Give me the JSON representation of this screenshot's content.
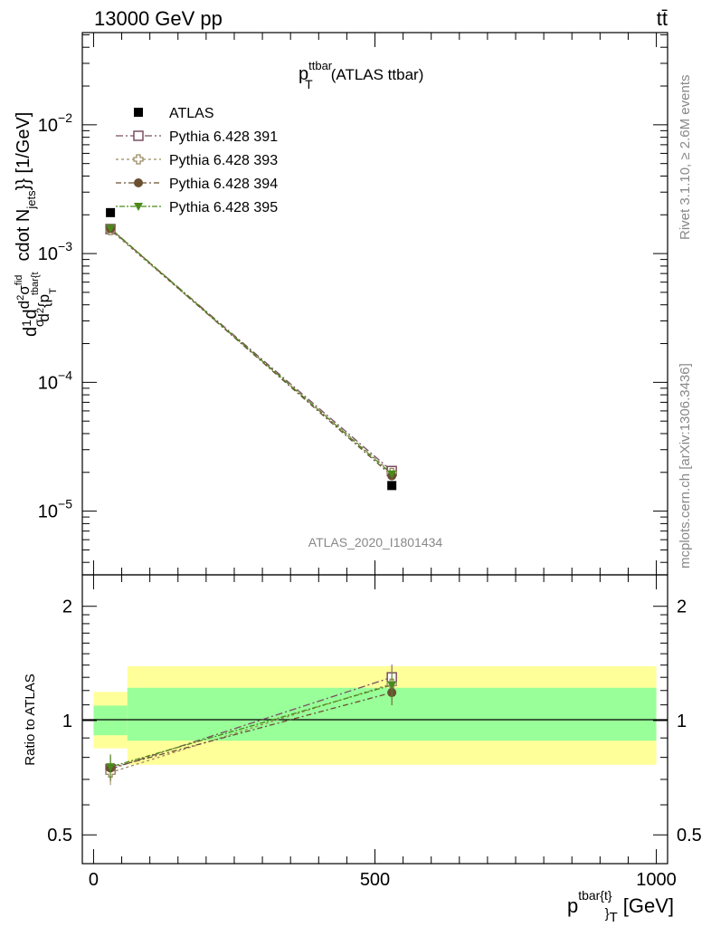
{
  "header": {
    "energy_label": "13000 GeV pp",
    "process_label": "tt̄"
  },
  "side_labels": {
    "rivet": "Rivet 3.1.10, ≥ 2.6M events",
    "mcplots": "mcplots.cern.ch [arXiv:1306.3436]"
  },
  "chart_data": [
    {
      "type": "line",
      "title_main": "p",
      "title_sup": "ttbar",
      "title_sub": "T",
      "title_rest": "(ATLAS ttbar)",
      "watermark": "ATLAS_2020_I1801434",
      "ylabel_parts": {
        "main": "d",
        "frac1": "1",
        "frac1_den": "σ",
        "d_a": "d",
        "num": "d",
        "num_sup": "2",
        "sigma": "σ",
        "sigma_sup": "fid",
        "den": "d",
        "den_sup": "2",
        "den_rest": "{p",
        "den_rest_sub": "T",
        "den_rest_sup": "tbar{t",
        "tail": "cdot N",
        "tail_sub": "jets",
        "tail_end": "}} [1/GeV]"
      },
      "xlim": [
        -20,
        1020
      ],
      "ylim": [
        3.2e-06,
        0.052
      ],
      "yscale": "log",
      "yticks": [
        {
          "value": 1e-05,
          "base": "10",
          "exp": "−5"
        },
        {
          "value": 0.0001,
          "base": "10",
          "exp": "−4"
        },
        {
          "value": 0.001,
          "base": "10",
          "exp": "−3"
        },
        {
          "value": 0.01,
          "base": "10",
          "exp": "−2"
        }
      ],
      "legend_position": "top-left",
      "data_series": {
        "name": "ATLAS",
        "color": "#000000",
        "x": [
          30,
          530
        ],
        "y": [
          0.00208,
          1.58e-05
        ]
      },
      "series": [
        {
          "name": "Pythia 6.428 391",
          "color": "#7a4e62",
          "marker": "open-square",
          "dash": "8,3,2,3",
          "x": [
            30,
            530
          ],
          "y": [
            0.00155,
            2.05e-05
          ]
        },
        {
          "name": "Pythia 6.428 393",
          "color": "#9c8a60",
          "marker": "open-cross",
          "dash": "3,3",
          "x": [
            30,
            530
          ],
          "y": [
            0.00152,
            1.98e-05
          ]
        },
        {
          "name": "Pythia 6.428 394",
          "color": "#6b4f32",
          "marker": "filled-circle",
          "dash": "6,3,2,3",
          "x": [
            30,
            530
          ],
          "y": [
            0.00156,
            1.88e-05
          ]
        },
        {
          "name": "Pythia 6.428 395",
          "color": "#4a8a1a",
          "marker": "filled-triangle-down",
          "dash": "2,2,6,2",
          "x": [
            30,
            530
          ],
          "y": [
            0.00157,
            1.94e-05
          ]
        }
      ]
    },
    {
      "type": "line",
      "ylabel": "Ratio to ATLAS",
      "xlabel_main": "p",
      "xlabel_sup": "tbar{t}",
      "xlabel_sub": "}",
      "xlabel_sub2": "T",
      "xlabel_unit": "[GeV]",
      "xlim": [
        -20,
        1020
      ],
      "ylim": [
        0.42,
        2.42
      ],
      "yscale": "log",
      "yticks": [
        {
          "value": 0.5,
          "label": "0.5"
        },
        {
          "value": 1,
          "label": "1"
        },
        {
          "value": 2,
          "label": "2"
        }
      ],
      "xticks": [
        {
          "value": 0,
          "label": "0"
        },
        {
          "value": 500,
          "label": "500"
        },
        {
          "value": 1000,
          "label": "1000"
        }
      ],
      "bands": [
        {
          "x0": 0,
          "x1": 60,
          "yellow": [
            0.845,
            1.19
          ],
          "green": [
            0.915,
            1.095
          ]
        },
        {
          "x0": 60,
          "x1": 1000,
          "yellow": [
            0.765,
            1.39
          ],
          "green": [
            0.885,
            1.22
          ]
        }
      ],
      "band_colors": {
        "yellow": "#ffff99",
        "green": "#99ff99"
      },
      "series": [
        {
          "name": "Pythia 6.428 391",
          "color": "#7a4e62",
          "marker": "open-square",
          "dash": "8,3,2,3",
          "x": [
            30,
            530
          ],
          "y": [
            0.745,
            1.3
          ]
        },
        {
          "name": "Pythia 6.428 393",
          "color": "#9c8a60",
          "marker": "open-cross",
          "dash": "3,3",
          "x": [
            30,
            530
          ],
          "y": [
            0.73,
            1.25
          ]
        },
        {
          "name": "Pythia 6.428 394",
          "color": "#6b4f32",
          "marker": "filled-circle",
          "dash": "6,3,2,3",
          "x": [
            30,
            530
          ],
          "y": [
            0.75,
            1.185
          ]
        },
        {
          "name": "Pythia 6.428 395",
          "color": "#4a8a1a",
          "marker": "filled-triangle-down",
          "dash": "2,2,6,2",
          "x": [
            30,
            530
          ],
          "y": [
            0.755,
            1.24
          ]
        }
      ]
    }
  ]
}
